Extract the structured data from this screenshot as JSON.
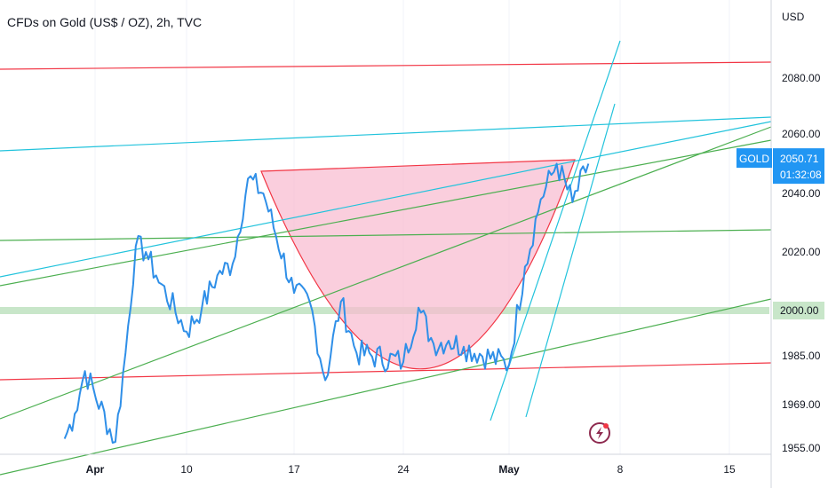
{
  "header": {
    "title": "CFDs on Gold (US$ / OZ), 2h, TVC"
  },
  "colors": {
    "price_line": "#2f8fe8",
    "price_tag": "#2196f3",
    "resistance": "#f23645",
    "trend_cyan": "#22c3dc",
    "trend_green": "#4caf50",
    "cup_fill": "#f8bbd0",
    "level_band": "#c8e6c9"
  },
  "icons": {
    "flash": "lightning-icon"
  },
  "price_tag": {
    "symbol": "GOLD",
    "price": "2050.71",
    "countdown": "01:32:08"
  },
  "level_tag": {
    "price": "2000.00"
  },
  "chart_data": {
    "type": "line",
    "title": "CFDs on Gold (US$ / OZ), 2h, TVC",
    "y_axis_label": "USD",
    "y_ticks": [
      "2080.00",
      "2060.00",
      "2040.00",
      "2020.00",
      "2000.00",
      "1985.00",
      "1969.00",
      "1955.00"
    ],
    "x_ticks": [
      "Apr",
      "10",
      "17",
      "24",
      "May",
      "8",
      "15"
    ],
    "y_range": [
      1953,
      2113
    ],
    "x_range": [
      "2023-03-29",
      "2023-05-18"
    ],
    "series": [
      {
        "x": [
          "2023-03-29",
          "2023-03-30",
          "2023-03-31",
          "2023-04-03",
          "2023-04-04",
          "2023-04-05",
          "2023-04-06",
          "2023-04-07",
          "2023-04-10",
          "2023-04-11",
          "2023-04-12",
          "2023-04-13",
          "2023-04-14",
          "2023-04-15",
          "2023-04-17",
          "2023-04-18",
          "2023-04-19",
          "2023-04-20",
          "2023-04-21",
          "2023-04-24",
          "2023-04-25",
          "2023-04-26",
          "2023-04-27",
          "2023-04-28",
          "2023-05-01",
          "2023-05-02",
          "2023-05-03",
          "2023-05-04",
          "2023-05-05",
          "2023-05-06"
        ],
        "values": [
          1958,
          1966,
          1980,
          1957,
          1986,
          2022,
          2020,
          2012,
          1993,
          2001,
          2012,
          2016,
          2045,
          2040,
          2006,
          2003,
          1977,
          2003,
          1986,
          1983,
          2001,
          1989,
          1990,
          1988,
          1982,
          2015,
          2038,
          2050,
          2037,
          2050
        ]
      }
    ],
    "annotations": {
      "horizontal_level": 2000,
      "pattern": "cup"
    }
  }
}
